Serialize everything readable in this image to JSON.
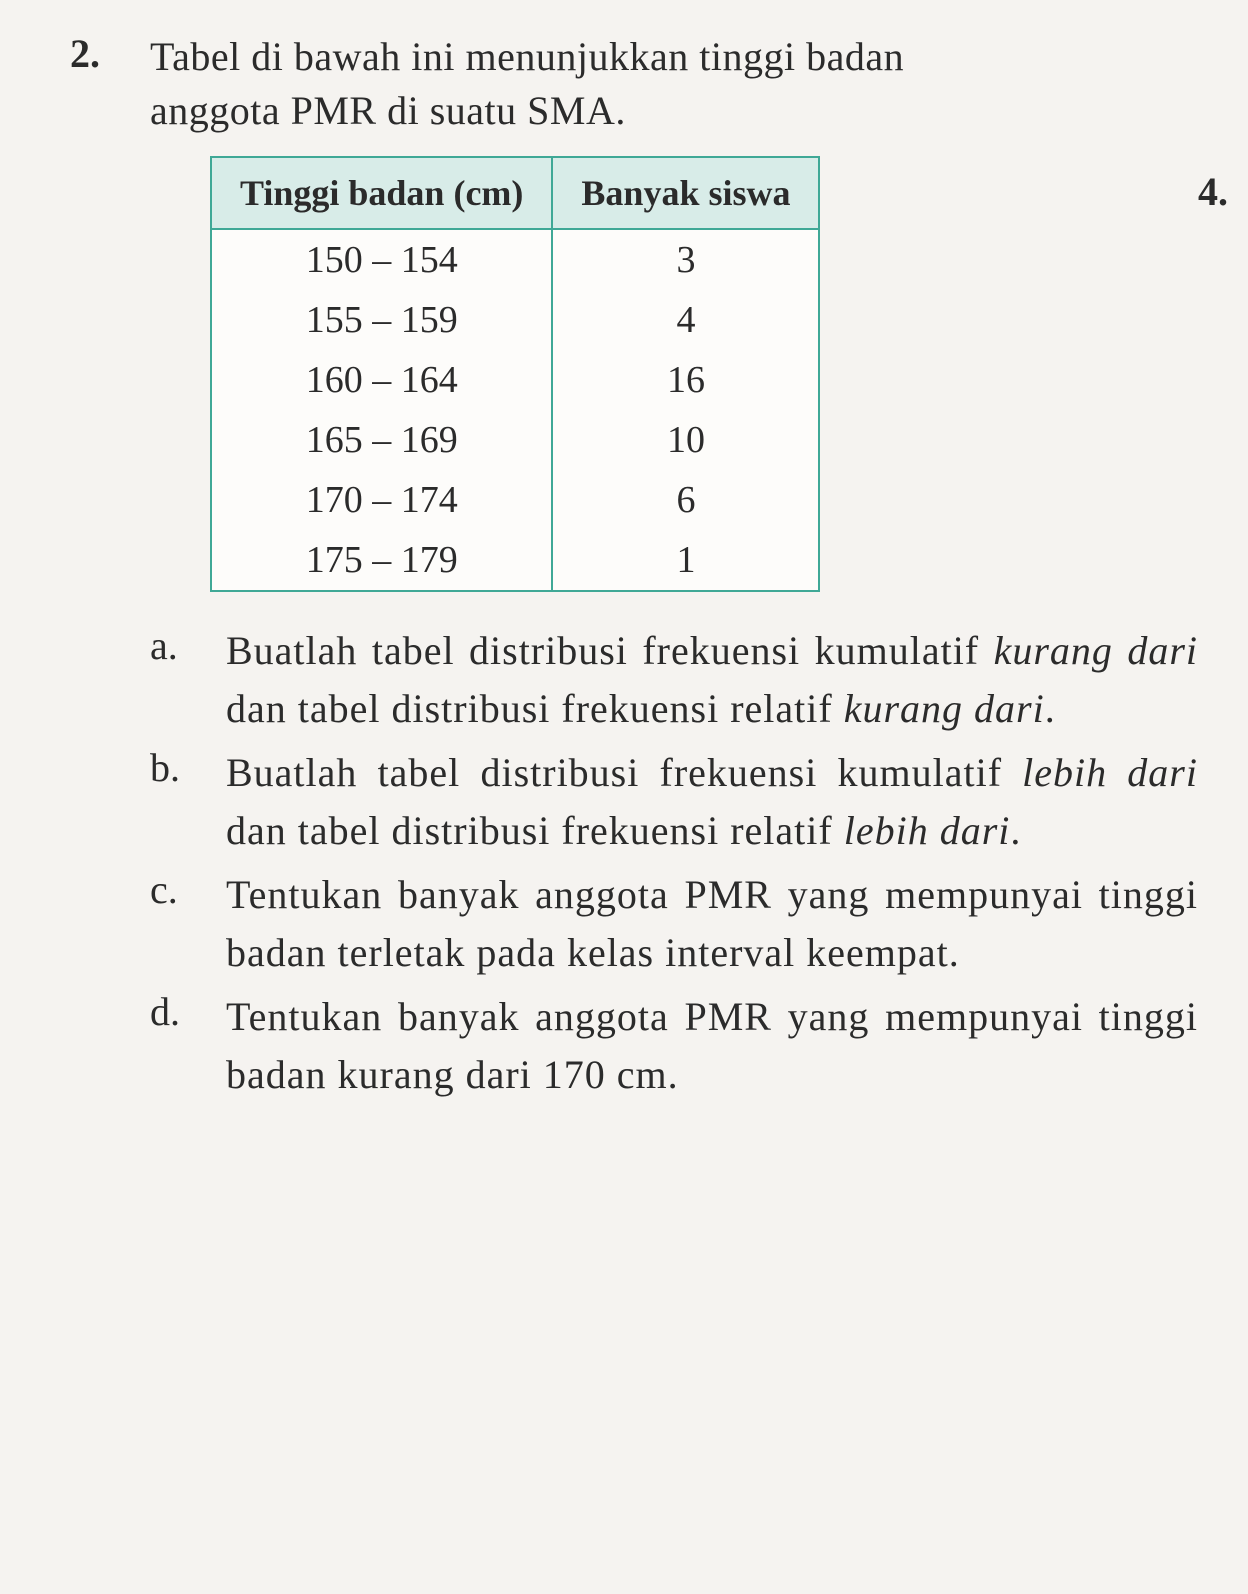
{
  "question": {
    "number": "2.",
    "intro_line1": "Tabel di bawah ini menunjukkan tinggi badan",
    "intro_line2": "anggota PMR di suatu SMA."
  },
  "side_number": "4.",
  "table": {
    "header_col1": "Tinggi badan (cm)",
    "header_col2": "Banyak siswa",
    "rows": [
      {
        "range": "150 – 154",
        "count": "3"
      },
      {
        "range": "155 – 159",
        "count": "4"
      },
      {
        "range": "160 – 164",
        "count": "16"
      },
      {
        "range": "165 – 169",
        "count": "10"
      },
      {
        "range": "170 – 174",
        "count": "6"
      },
      {
        "range": "175 – 179",
        "count": "1"
      }
    ],
    "border_color": "#3fa896",
    "header_bg": "#d8ece8"
  },
  "subs": {
    "a": {
      "letter": "a.",
      "p1": "Buatlah tabel distribusi frekuensi kumulatif ",
      "i1": "kurang dari",
      "p2": " dan tabel distribusi frekuensi relatif ",
      "i2": "kurang dari",
      "p3": "."
    },
    "b": {
      "letter": "b.",
      "p1": "Buatlah tabel distribusi frekuensi kumulatif ",
      "i1": "lebih dari",
      "p2": " dan tabel distribusi frekuensi relatif ",
      "i2": "lebih dari",
      "p3": "."
    },
    "c": {
      "letter": "c.",
      "text": "Tentukan banyak anggota PMR yang mempunyai tinggi badan terletak pada kelas interval keempat."
    },
    "d": {
      "letter": "d.",
      "text": "Tentukan banyak anggota PMR yang mempunyai tinggi badan kurang dari 170 cm."
    }
  }
}
